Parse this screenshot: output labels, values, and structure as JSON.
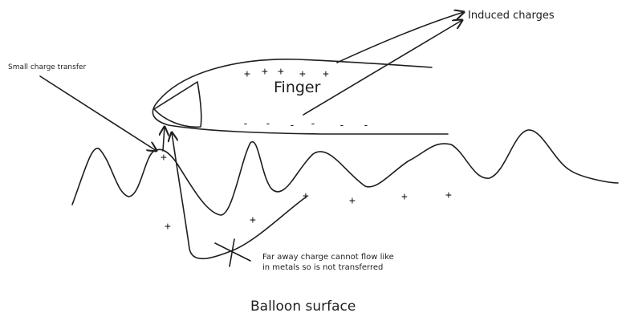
{
  "labels": {
    "finger": "Finger",
    "induced_charges": "Induced charges",
    "small_charge_transfer": "Small charge transfer",
    "far_away_line1": "Far away charge cannot flow like",
    "far_away_line2": "in metals so is not transferred",
    "balloon_surface": "Balloon surface"
  },
  "symbols": {
    "plus": "+",
    "minus": "-"
  },
  "colors": {
    "ink": "#1e1e1e",
    "background": "#ffffff"
  }
}
